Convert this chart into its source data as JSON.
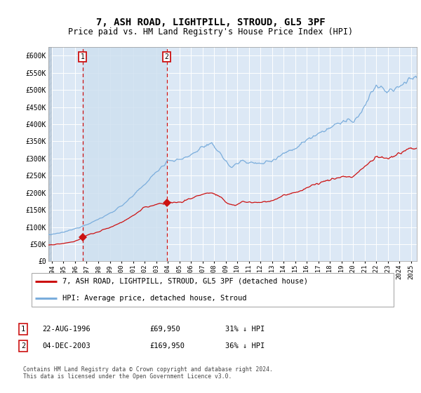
{
  "title": "7, ASH ROAD, LIGHTPILL, STROUD, GL5 3PF",
  "subtitle": "Price paid vs. HM Land Registry's House Price Index (HPI)",
  "ytick_values": [
    0,
    50000,
    100000,
    150000,
    200000,
    250000,
    300000,
    350000,
    400000,
    450000,
    500000,
    550000,
    600000
  ],
  "ylim": [
    0,
    625000
  ],
  "xlim_start": 1993.7,
  "xlim_end": 2025.5,
  "hpi_color": "#7aaddc",
  "price_color": "#cc1111",
  "sale1_date": 1996.64,
  "sale1_price": 69950,
  "sale2_date": 2003.92,
  "sale2_price": 169950,
  "legend_label1": "7, ASH ROAD, LIGHTPILL, STROUD, GL5 3PF (detached house)",
  "legend_label2": "HPI: Average price, detached house, Stroud",
  "table_row1": [
    "1",
    "22-AUG-1996",
    "£69,950",
    "31% ↓ HPI"
  ],
  "table_row2": [
    "2",
    "04-DEC-2003",
    "£169,950",
    "36% ↓ HPI"
  ],
  "footnote": "Contains HM Land Registry data © Crown copyright and database right 2024.\nThis data is licensed under the Open Government Licence v3.0.",
  "background_color": "#dce8f5",
  "shaded_region_color": "#cfe0f0",
  "grid_color": "#ffffff",
  "title_fontsize": 10,
  "subtitle_fontsize": 8.5,
  "tick_fontsize": 7
}
